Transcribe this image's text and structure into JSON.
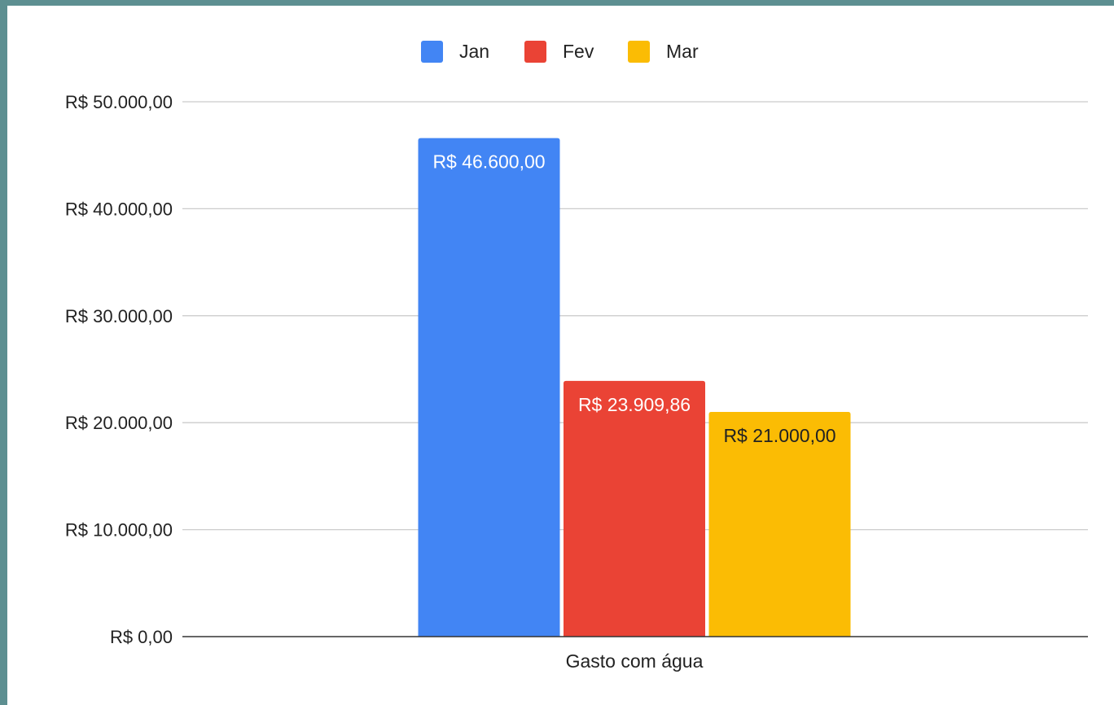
{
  "chart_data": {
    "type": "bar",
    "title": "",
    "xlabel": "",
    "ylabel": "",
    "categories": [
      "Gasto com água"
    ],
    "series": [
      {
        "name": "Jan",
        "values": [
          46600.0
        ],
        "label": "R$ 46.600,00",
        "color": "#4285f4",
        "label_color": "#ffffff"
      },
      {
        "name": "Fev",
        "values": [
          23909.86
        ],
        "label": "R$ 23.909,86",
        "color": "#ea4335",
        "label_color": "#ffffff"
      },
      {
        "name": "Mar",
        "values": [
          21000.0
        ],
        "label": "R$ 21.000,00",
        "color": "#fbbc04",
        "label_color": "#222222"
      }
    ],
    "ylim": [
      0,
      50000
    ],
    "yticks": [
      {
        "value": 0,
        "label": "R$ 0,00"
      },
      {
        "value": 10000,
        "label": "R$ 10.000,00"
      },
      {
        "value": 20000,
        "label": "R$ 20.000,00"
      },
      {
        "value": 30000,
        "label": "R$ 30.000,00"
      },
      {
        "value": 40000,
        "label": "R$ 40.000,00"
      },
      {
        "value": 50000,
        "label": "R$ 50.000,00"
      }
    ],
    "grid": true,
    "legend": "top-center"
  }
}
